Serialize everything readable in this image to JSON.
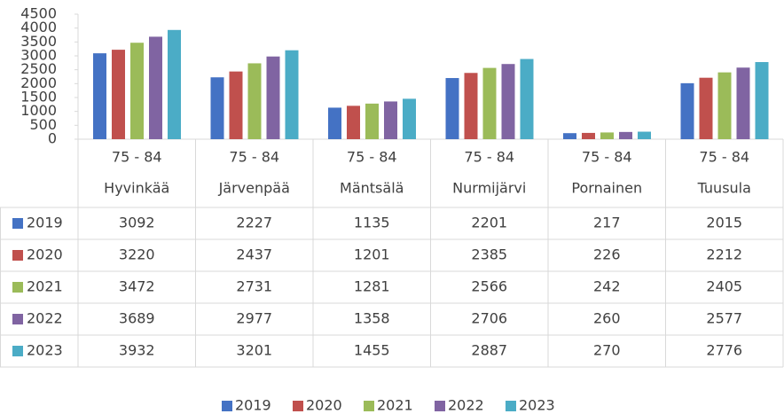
{
  "chart_data": {
    "type": "bar",
    "subcategories": [
      "75 - 84",
      "75 - 84",
      "75 - 84",
      "75 - 84",
      "75 - 84",
      "75 - 84"
    ],
    "categories": [
      "Hyvinkää",
      "Järvenpää",
      "Mäntsälä",
      "Nurmijärvi",
      "Pornainen",
      "Tuusula"
    ],
    "series": [
      {
        "name": "2019",
        "color": "#4472c4",
        "values": [
          3092,
          2227,
          1135,
          2201,
          217,
          2015
        ]
      },
      {
        "name": "2020",
        "color": "#c0504d",
        "values": [
          3220,
          2437,
          1201,
          2385,
          226,
          2212
        ]
      },
      {
        "name": "2021",
        "color": "#9bbb59",
        "values": [
          3472,
          2731,
          1281,
          2566,
          242,
          2405
        ]
      },
      {
        "name": "2022",
        "color": "#8064a2",
        "values": [
          3689,
          2977,
          1358,
          2706,
          260,
          2577
        ]
      },
      {
        "name": "2023",
        "color": "#4bacc6",
        "values": [
          3932,
          3201,
          1455,
          2887,
          270,
          2776
        ]
      }
    ],
    "ylim": [
      0,
      4500
    ],
    "yticks": [
      0,
      500,
      1000,
      1500,
      2000,
      2500,
      3000,
      3500,
      4000,
      4500
    ],
    "grid": false,
    "legend": "bottom"
  }
}
